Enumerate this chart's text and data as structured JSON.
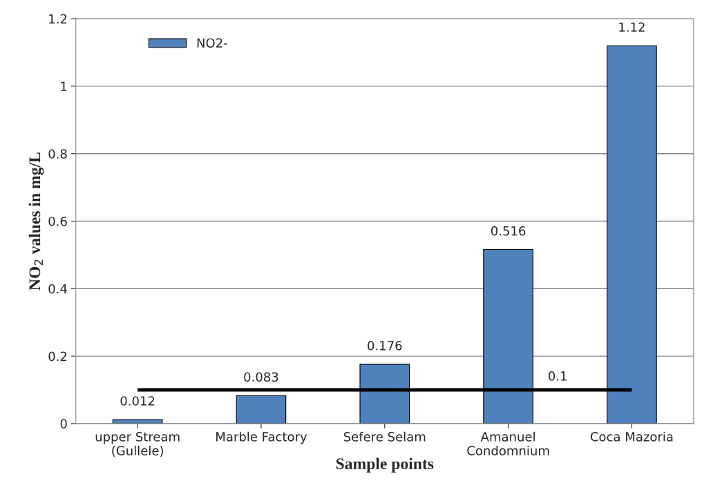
{
  "chart_data": {
    "type": "bar",
    "xlabel": "Sample points",
    "ylabel": "NO$_{2}$ values in mg/L",
    "categories": [
      "upper Stream\n(Gullele)",
      "Marble Factory",
      "Sefere Selam",
      "Amanuel\nCondomnium",
      "Coca Mazoria"
    ],
    "series": [
      {
        "name": "NO2-",
        "color": "#4f81bd",
        "values": [
          0.012,
          0.083,
          0.176,
          0.516,
          1.12
        ]
      }
    ],
    "data_labels": true,
    "ylim": [
      0,
      1.2
    ],
    "yticks": [
      0,
      0.2,
      0.4,
      0.6,
      0.8,
      1,
      1.2
    ],
    "grid": "y",
    "legend": "top left",
    "ref_lines": [
      {
        "axis": "y",
        "value": 0.1,
        "label": "0.1",
        "color": "#000000"
      }
    ]
  }
}
